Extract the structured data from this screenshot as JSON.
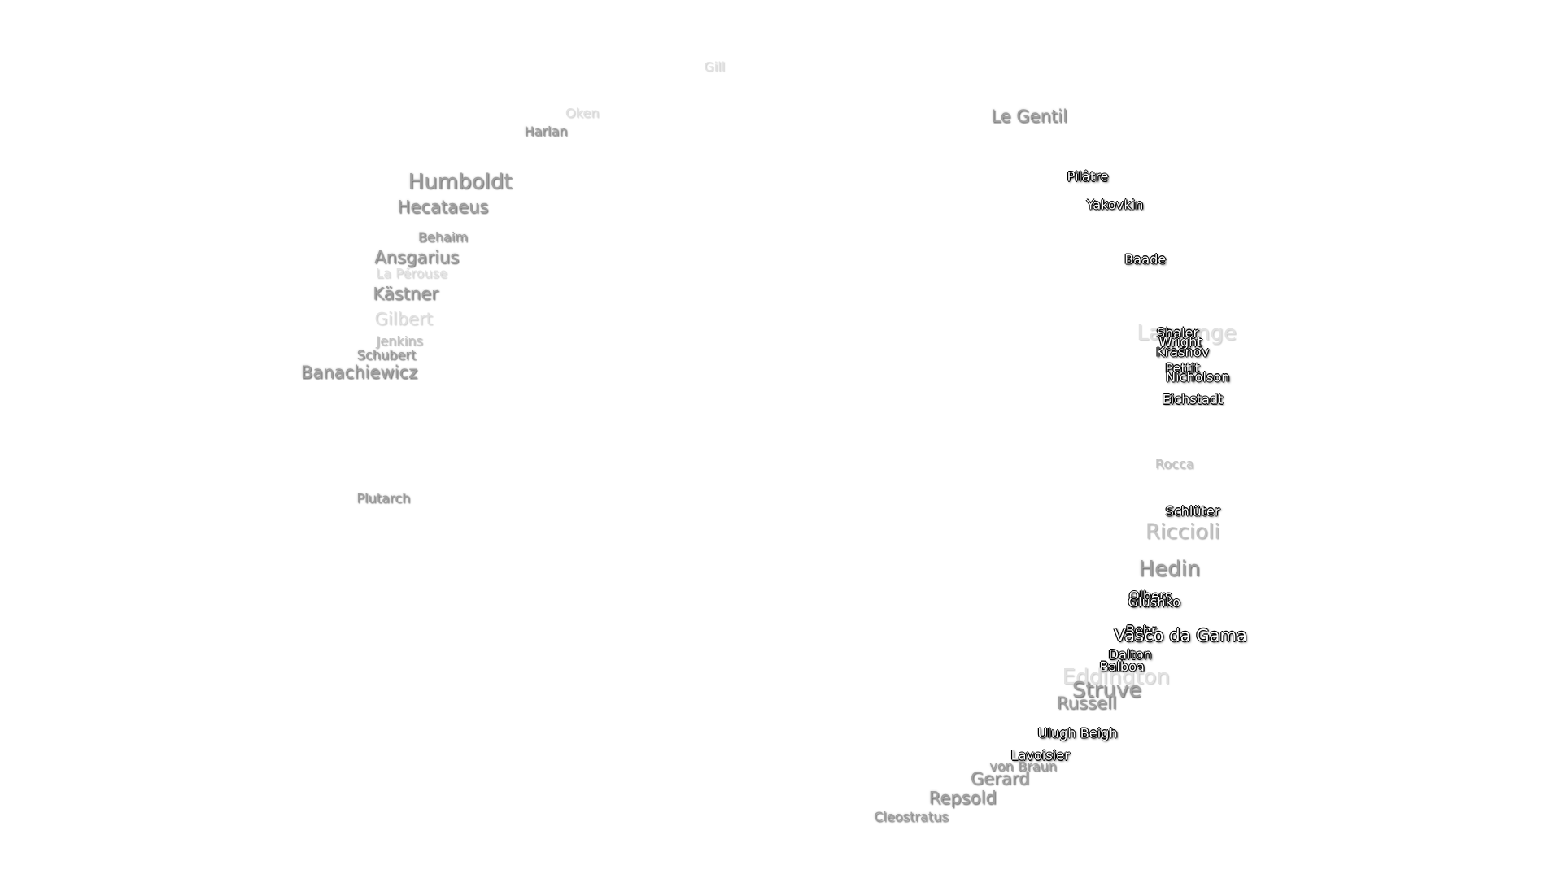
{
  "labels": [
    {
      "text": "Gill"
    },
    {
      "text": "Oken"
    },
    {
      "text": "Harlan"
    },
    {
      "text": "Le Gentil"
    },
    {
      "text": "Humboldt"
    },
    {
      "text": "Hecataeus"
    },
    {
      "text": "Behaim"
    },
    {
      "text": "Ansgarius"
    },
    {
      "text": "La Pérouse"
    },
    {
      "text": "Kästner"
    },
    {
      "text": "Gilbert"
    },
    {
      "text": "Jenkins"
    },
    {
      "text": "Schubert"
    },
    {
      "text": "Banachiewicz"
    },
    {
      "text": "Plutarch"
    },
    {
      "text": "Pilâtre"
    },
    {
      "text": "Yakovkin"
    },
    {
      "text": "Baade"
    },
    {
      "text": "Lagrange"
    },
    {
      "text": "Shaler"
    },
    {
      "text": "Wright"
    },
    {
      "text": "Krasnov"
    },
    {
      "text": "Pettit"
    },
    {
      "text": "Nicholson"
    },
    {
      "text": "Eichstadt"
    },
    {
      "text": "Rocca"
    },
    {
      "text": "Schlüter"
    },
    {
      "text": "Riccioli"
    },
    {
      "text": "Hedin"
    },
    {
      "text": "Olbers"
    },
    {
      "text": "Glushko"
    },
    {
      "text": "Bohr"
    },
    {
      "text": "Vasco da Gama"
    },
    {
      "text": "Dalton"
    },
    {
      "text": "Balboa"
    },
    {
      "text": "Eddington"
    },
    {
      "text": "Struve"
    },
    {
      "text": "Russell"
    },
    {
      "text": "Ulugh Beigh"
    },
    {
      "text": "Lavoisier"
    },
    {
      "text": "von Braun"
    },
    {
      "text": "Gerard"
    },
    {
      "text": "Repsold"
    },
    {
      "text": "Cleostratus"
    }
  ]
}
